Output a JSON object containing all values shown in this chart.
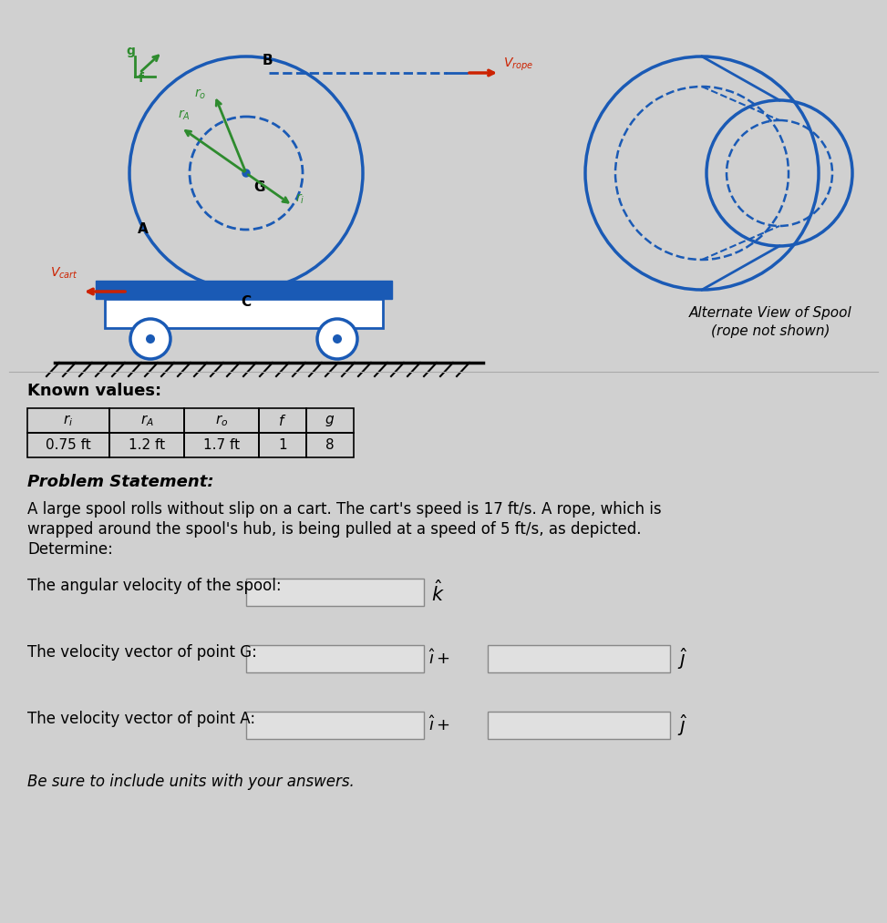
{
  "bg_color": "#d0d0d0",
  "diagram_blue": "#1a5ab5",
  "diagram_green": "#2e8b2e",
  "diagram_red": "#cc2200",
  "known_values_headers": [
    "$r_i$",
    "$r_A$",
    "$r_o$",
    "$f$",
    "$g$"
  ],
  "known_values_row": [
    "0.75 ft",
    "1.2 ft",
    "1.7 ft",
    "1",
    "8"
  ],
  "problem_statement_line1": "A large spool rolls without slip on a cart. The cart's speed is 17 ft/s. A rope, which is",
  "problem_statement_line2": "wrapped around the spool's hub, is being pulled at a speed of 5 ft/s, as depicted.",
  "problem_statement_line3": "Determine:",
  "questions": [
    "The angular velocity of the spool:",
    "The velocity vector of point G:",
    "The velocity vector of point A:"
  ],
  "alt_view_line1": "Alternate View of Spool",
  "alt_view_line2": "(rope not shown)",
  "known_label": "Known values:",
  "problem_label": "Problem Statement:",
  "footer": "Be sure to include units with your answers."
}
